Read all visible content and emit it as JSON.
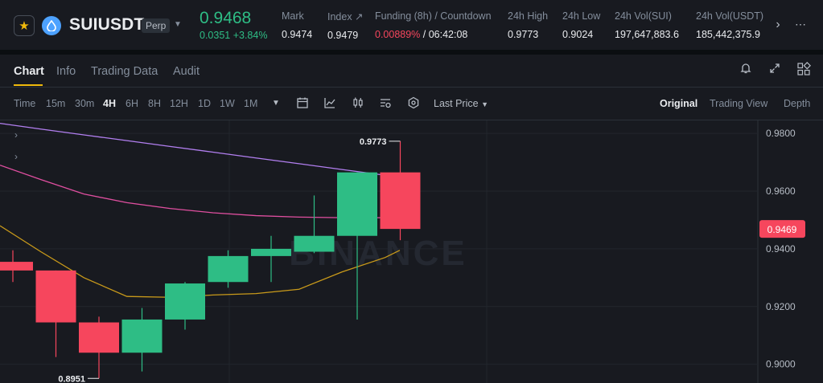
{
  "header": {
    "symbol": "SUIUSDT",
    "badge": "Perp",
    "last_price": "0.9468",
    "change": "0.0351 +3.84%",
    "stats": [
      {
        "label": "Mark",
        "value": "0.9474"
      },
      {
        "label": "Index ↗",
        "value": "0.9479"
      },
      {
        "label": "Funding (8h) / Countdown",
        "value_red": "0.00889%",
        "value": " / 06:42:08"
      },
      {
        "label": "24h High",
        "value": "0.9773"
      },
      {
        "label": "24h Low",
        "value": "0.9024"
      },
      {
        "label": "24h Vol(SUI)",
        "value": "197,647,883.6"
      },
      {
        "label": "24h Vol(USDT)",
        "value": "185,442,375.9"
      }
    ],
    "next_icon": "›",
    "more_icon": "⋯"
  },
  "tabs": [
    "Chart",
    "Info",
    "Trading Data",
    "Audit"
  ],
  "timeframes": [
    "Time",
    "15m",
    "30m",
    "4H",
    "6H",
    "8H",
    "12H",
    "1D",
    "1W",
    "1M"
  ],
  "active_timeframe": "4H",
  "toolbar": {
    "price_source": "Last Price",
    "views": [
      "Original",
      "Trading View",
      "Depth"
    ]
  },
  "chart_data": {
    "type": "candlestick",
    "y_ticks": [
      "0.9800",
      "0.9600",
      "0.9400",
      "0.9200",
      "0.9000"
    ],
    "ylim": [
      0.8935,
      0.9845
    ],
    "current_price_label": "0.9469",
    "high_label": "0.9773",
    "low_label": "0.8951",
    "watermark": "BINANCE",
    "candles": [
      {
        "open": 0.9355,
        "high": 0.9395,
        "low": 0.9285,
        "close": 0.9325
      },
      {
        "open": 0.9325,
        "high": 0.9325,
        "low": 0.9025,
        "close": 0.9145
      },
      {
        "open": 0.9145,
        "high": 0.9165,
        "low": 0.8951,
        "close": 0.904
      },
      {
        "open": 0.904,
        "high": 0.9195,
        "low": 0.8975,
        "close": 0.9155
      },
      {
        "open": 0.9155,
        "high": 0.9285,
        "low": 0.912,
        "close": 0.928
      },
      {
        "open": 0.9285,
        "high": 0.9395,
        "low": 0.9265,
        "close": 0.9375
      },
      {
        "open": 0.9375,
        "high": 0.9445,
        "low": 0.9285,
        "close": 0.94
      },
      {
        "open": 0.939,
        "high": 0.9585,
        "low": 0.9385,
        "close": 0.9445
      },
      {
        "open": 0.9445,
        "high": 0.9665,
        "low": 0.9155,
        "close": 0.9665
      },
      {
        "open": 0.9665,
        "high": 0.9773,
        "low": 0.943,
        "close": 0.9469
      }
    ],
    "moving_averages": [
      {
        "color": "#b27ff0",
        "values": [
          0.9835,
          0.9815,
          0.9795,
          0.9775,
          0.9755,
          0.9735,
          0.9715,
          0.9695,
          0.9675,
          0.9655,
          0.9645
        ]
      },
      {
        "color": "#e04fa0",
        "values": [
          0.969,
          0.964,
          0.959,
          0.956,
          0.954,
          0.9525,
          0.9515,
          0.951,
          0.9508,
          0.9508,
          0.951
        ]
      },
      {
        "color": "#c99a1a",
        "values": [
          0.948,
          0.939,
          0.93,
          0.9235,
          0.9232,
          0.924,
          0.9245,
          0.926,
          0.932,
          0.937,
          0.9395
        ]
      }
    ]
  }
}
